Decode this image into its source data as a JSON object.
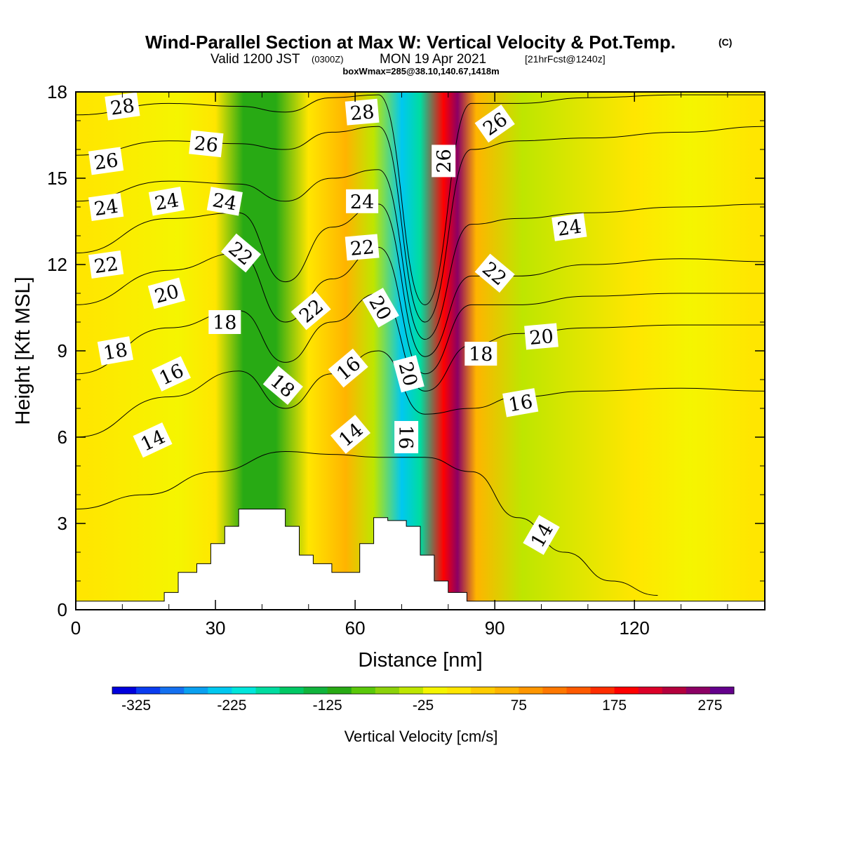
{
  "header": {
    "title": "Wind-Parallel Section at Max W: Vertical Velocity & Pot.Temp.",
    "title_mark": "(C)",
    "subtitle_a": "Valid 1200 JST",
    "subtitle_b": "(0300Z)",
    "subtitle_c": "MON 19 Apr 2021",
    "subtitle_d": "[21hrFcst@1240z]",
    "subtitle_e": "boxWmax=285@38.10,140.67,1418m"
  },
  "chart_data": {
    "type": "heatmap",
    "xlabel": "Distance [nm]",
    "ylabel": "Height [Kft MSL]",
    "xlim": [
      0,
      148
    ],
    "ylim": [
      0,
      18
    ],
    "x_ticks": [
      0,
      30,
      60,
      90,
      120
    ],
    "y_ticks": [
      0,
      3,
      6,
      9,
      12,
      15,
      18
    ],
    "colorbar": {
      "label": "Vertical Velocity [cm/s]",
      "ticks": [
        -325,
        -225,
        -125,
        -25,
        75,
        175,
        275
      ],
      "min": -350,
      "step": 25,
      "colors": [
        "#0000dd",
        "#0a3cf0",
        "#1470f0",
        "#0aa0f0",
        "#00c8f0",
        "#00e6dc",
        "#00dca0",
        "#00c864",
        "#10b43c",
        "#28aa14",
        "#5ac80a",
        "#8cd20a",
        "#bee600",
        "#f5f500",
        "#ffe600",
        "#ffcc00",
        "#ffb400",
        "#ff9600",
        "#ff7800",
        "#ff5a00",
        "#ff2d00",
        "#ff0000",
        "#dc0028",
        "#b4003c",
        "#8c0064",
        "#64008c"
      ]
    },
    "vertical_velocity_bands": [
      {
        "x": 2,
        "value": 5
      },
      {
        "x": 22,
        "value": -5
      },
      {
        "x": 30,
        "value": 20
      },
      {
        "x": 36,
        "value": -105
      },
      {
        "x": 43,
        "value": -120
      },
      {
        "x": 50,
        "value": 20
      },
      {
        "x": 58,
        "value": 60
      },
      {
        "x": 64,
        "value": -40
      },
      {
        "x": 70,
        "value": -250
      },
      {
        "x": 74,
        "value": -200
      },
      {
        "x": 79,
        "value": 190
      },
      {
        "x": 82,
        "value": 270
      },
      {
        "x": 86,
        "value": 60
      },
      {
        "x": 96,
        "value": -30
      },
      {
        "x": 120,
        "value": 5
      },
      {
        "x": 132,
        "value": -20
      },
      {
        "x": 145,
        "value": 5
      }
    ],
    "pot_temp_contours": [
      {
        "label": "14",
        "points": [
          [
            0,
            3.5
          ],
          [
            15,
            4.0
          ],
          [
            30,
            4.8
          ],
          [
            45,
            5.5
          ],
          [
            55,
            5.4
          ],
          [
            65,
            5.3
          ],
          [
            75,
            5.3
          ],
          [
            85,
            4.8
          ],
          [
            95,
            3.2
          ],
          [
            105,
            2.0
          ],
          [
            115,
            1.0
          ],
          [
            125,
            0.5
          ]
        ]
      },
      {
        "label": "16",
        "points": [
          [
            0,
            6.0
          ],
          [
            20,
            7.4
          ],
          [
            35,
            8.3
          ],
          [
            45,
            7.0
          ],
          [
            55,
            8.2
          ],
          [
            65,
            9.0
          ],
          [
            75,
            6.8
          ],
          [
            85,
            7.0
          ],
          [
            95,
            7.4
          ],
          [
            110,
            7.6
          ],
          [
            130,
            7.7
          ],
          [
            148,
            7.6
          ]
        ]
      },
      {
        "label": "18",
        "points": [
          [
            0,
            8.2
          ],
          [
            20,
            9.8
          ],
          [
            35,
            10.4
          ],
          [
            45,
            8.6
          ],
          [
            55,
            10.0
          ],
          [
            65,
            11.0
          ],
          [
            75,
            7.6
          ],
          [
            85,
            9.2
          ],
          [
            95,
            9.6
          ],
          [
            110,
            9.8
          ],
          [
            130,
            9.9
          ],
          [
            148,
            9.9
          ]
        ]
      },
      {
        "label": "20",
        "points": [
          [
            0,
            10.6
          ],
          [
            20,
            11.8
          ],
          [
            35,
            12.4
          ],
          [
            45,
            10.0
          ],
          [
            55,
            11.5
          ],
          [
            65,
            12.6
          ],
          [
            75,
            8.2
          ],
          [
            85,
            10.6
          ],
          [
            95,
            10.6
          ],
          [
            110,
            10.9
          ],
          [
            130,
            11.0
          ],
          [
            148,
            11.0
          ]
        ]
      },
      {
        "label": "22",
        "points": [
          [
            0,
            12.4
          ],
          [
            20,
            13.6
          ],
          [
            35,
            13.8
          ],
          [
            45,
            11.4
          ],
          [
            55,
            13.3
          ],
          [
            65,
            14.1
          ],
          [
            75,
            8.8
          ],
          [
            85,
            11.6
          ],
          [
            95,
            11.6
          ],
          [
            110,
            12.0
          ],
          [
            130,
            12.2
          ],
          [
            148,
            12.1
          ]
        ]
      },
      {
        "label": "24",
        "points": [
          [
            0,
            14.2
          ],
          [
            20,
            14.9
          ],
          [
            35,
            14.8
          ],
          [
            45,
            14.2
          ],
          [
            55,
            15.0
          ],
          [
            65,
            15.3
          ],
          [
            75,
            9.4
          ],
          [
            85,
            13.4
          ],
          [
            95,
            13.6
          ],
          [
            110,
            13.8
          ],
          [
            130,
            14.0
          ],
          [
            148,
            14.1
          ]
        ]
      },
      {
        "label": "26",
        "points": [
          [
            0,
            15.8
          ],
          [
            20,
            16.3
          ],
          [
            35,
            16.2
          ],
          [
            45,
            16.0
          ],
          [
            55,
            16.6
          ],
          [
            65,
            16.8
          ],
          [
            75,
            10.0
          ],
          [
            85,
            16.0
          ],
          [
            95,
            16.3
          ],
          [
            110,
            16.4
          ],
          [
            130,
            16.6
          ],
          [
            148,
            16.8
          ]
        ]
      },
      {
        "label": "28",
        "points": [
          [
            0,
            17.2
          ],
          [
            20,
            17.6
          ],
          [
            35,
            17.5
          ],
          [
            45,
            17.3
          ],
          [
            55,
            17.8
          ],
          [
            65,
            17.9
          ],
          [
            75,
            10.6
          ],
          [
            85,
            17.6
          ],
          [
            95,
            17.6
          ],
          [
            110,
            17.8
          ],
          [
            130,
            17.9
          ],
          [
            148,
            17.9
          ]
        ]
      }
    ],
    "contour_labels": [
      {
        "text": "28",
        "x": 10,
        "y": 17.5,
        "angle": -8
      },
      {
        "text": "26",
        "x": 6.5,
        "y": 15.6,
        "angle": -8
      },
      {
        "text": "24",
        "x": 6.5,
        "y": 14.0,
        "angle": -8
      },
      {
        "text": "22",
        "x": 6.5,
        "y": 12.0,
        "angle": -8
      },
      {
        "text": "18",
        "x": 8.5,
        "y": 9.0,
        "angle": -10
      },
      {
        "text": "26",
        "x": 28,
        "y": 16.2,
        "angle": 6
      },
      {
        "text": "24",
        "x": 19.5,
        "y": 14.2,
        "angle": -10
      },
      {
        "text": "24",
        "x": 32,
        "y": 14.2,
        "angle": 10
      },
      {
        "text": "22",
        "x": 35.5,
        "y": 12.4,
        "angle": 40
      },
      {
        "text": "20",
        "x": 19.5,
        "y": 11.0,
        "angle": -15
      },
      {
        "text": "18",
        "x": 32,
        "y": 10.0,
        "angle": 0
      },
      {
        "text": "16",
        "x": 20.5,
        "y": 8.2,
        "angle": -25
      },
      {
        "text": "14",
        "x": 16.5,
        "y": 5.9,
        "angle": -25
      },
      {
        "text": "18",
        "x": 44.5,
        "y": 7.8,
        "angle": 40
      },
      {
        "text": "22",
        "x": 50.5,
        "y": 10.4,
        "angle": -40
      },
      {
        "text": "16",
        "x": 58.5,
        "y": 8.4,
        "angle": -40
      },
      {
        "text": "14",
        "x": 59,
        "y": 6.1,
        "angle": -40
      },
      {
        "text": "28",
        "x": 61.5,
        "y": 17.3,
        "angle": -5
      },
      {
        "text": "24",
        "x": 61.5,
        "y": 14.2,
        "angle": 0
      },
      {
        "text": "22",
        "x": 61.5,
        "y": 12.6,
        "angle": -5
      },
      {
        "text": "20",
        "x": 65.5,
        "y": 10.5,
        "angle": 60
      },
      {
        "text": "20",
        "x": 71.5,
        "y": 8.2,
        "angle": 75
      },
      {
        "text": "16",
        "x": 71,
        "y": 6.0,
        "angle": 90
      },
      {
        "text": "26",
        "x": 79,
        "y": 15.6,
        "angle": -90
      },
      {
        "text": "26",
        "x": 90,
        "y": 16.9,
        "angle": -35
      },
      {
        "text": "22",
        "x": 90,
        "y": 11.7,
        "angle": 40
      },
      {
        "text": "18",
        "x": 87,
        "y": 8.9,
        "angle": 0
      },
      {
        "text": "20",
        "x": 100,
        "y": 9.5,
        "angle": -5
      },
      {
        "text": "24",
        "x": 106,
        "y": 13.3,
        "angle": -8
      },
      {
        "text": "16",
        "x": 95.5,
        "y": 7.2,
        "angle": -10
      },
      {
        "text": "14",
        "x": 100,
        "y": 2.6,
        "angle": -60
      }
    ],
    "terrain": [
      [
        0,
        0.3
      ],
      [
        19,
        0.3
      ],
      [
        19,
        0.6
      ],
      [
        22,
        0.6
      ],
      [
        22,
        1.3
      ],
      [
        26,
        1.3
      ],
      [
        26,
        1.6
      ],
      [
        29,
        1.6
      ],
      [
        29,
        2.3
      ],
      [
        32,
        2.3
      ],
      [
        32,
        2.9
      ],
      [
        35,
        2.9
      ],
      [
        35,
        3.5
      ],
      [
        45,
        3.5
      ],
      [
        45,
        2.9
      ],
      [
        48,
        2.9
      ],
      [
        48,
        1.9
      ],
      [
        51,
        1.9
      ],
      [
        51,
        1.6
      ],
      [
        55,
        1.6
      ],
      [
        55,
        1.3
      ],
      [
        61,
        1.3
      ],
      [
        61,
        2.3
      ],
      [
        64,
        2.3
      ],
      [
        64,
        3.2
      ],
      [
        67,
        3.2
      ],
      [
        67,
        3.1
      ],
      [
        71,
        3.1
      ],
      [
        71,
        2.9
      ],
      [
        74,
        2.9
      ],
      [
        74,
        1.9
      ],
      [
        77,
        1.9
      ],
      [
        77,
        1.0
      ],
      [
        80,
        1.0
      ],
      [
        80,
        0.6
      ],
      [
        84,
        0.6
      ],
      [
        84,
        0.3
      ],
      [
        148,
        0.3
      ]
    ]
  }
}
